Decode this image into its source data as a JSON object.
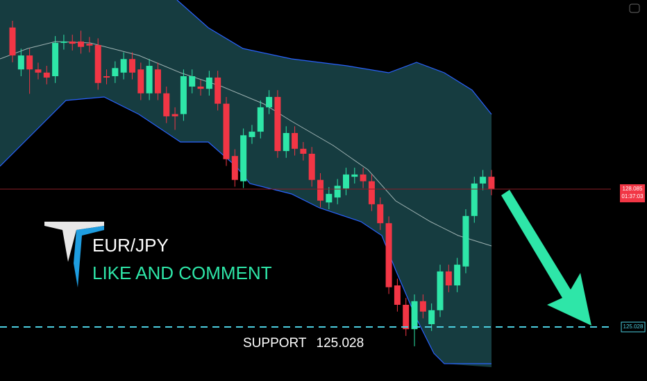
{
  "chart_data": {
    "type": "candlestick",
    "title": "EUR/JPY",
    "subtitle": "LIKE AND COMMENT",
    "support_label": "SUPPORT",
    "support": 125.028,
    "last_price": 128.085,
    "countdown": "01:37:03",
    "ylim": [
      123.83,
      132.28
    ],
    "up_color": "#2ee6a8",
    "down_color": "#f23645",
    "candles": [
      [
        131.67,
        131.82,
        130.9,
        131.05
      ],
      [
        130.74,
        131.2,
        130.59,
        131.05
      ],
      [
        131.05,
        131.2,
        130.2,
        130.74
      ],
      [
        130.74,
        130.89,
        130.52,
        130.67
      ],
      [
        130.67,
        130.82,
        130.41,
        130.56
      ],
      [
        130.59,
        131.48,
        130.44,
        131.33
      ],
      [
        131.33,
        131.51,
        131.18,
        131.36
      ],
      [
        131.36,
        131.51,
        131.16,
        131.31
      ],
      [
        131.36,
        131.6,
        131.09,
        131.24
      ],
      [
        131.31,
        131.46,
        131.12,
        131.27
      ],
      [
        131.28,
        131.43,
        130.29,
        130.44
      ],
      [
        130.59,
        130.74,
        130.41,
        130.56
      ],
      [
        130.59,
        130.92,
        130.44,
        130.77
      ],
      [
        130.67,
        131.12,
        130.52,
        130.97
      ],
      [
        130.97,
        131.12,
        130.52,
        130.67
      ],
      [
        130.74,
        130.89,
        130.06,
        130.21
      ],
      [
        130.21,
        130.97,
        130.06,
        130.82
      ],
      [
        130.74,
        130.89,
        130.06,
        130.21
      ],
      [
        130.21,
        130.36,
        129.55,
        129.7
      ],
      [
        129.75,
        129.9,
        129.4,
        129.7
      ],
      [
        129.75,
        130.74,
        129.6,
        130.59
      ],
      [
        130.36,
        130.74,
        130.21,
        130.59
      ],
      [
        130.36,
        130.51,
        130.16,
        130.31
      ],
      [
        130.31,
        130.71,
        130.16,
        130.56
      ],
      [
        130.56,
        130.71,
        129.83,
        129.98
      ],
      [
        129.98,
        130.13,
        128.6,
        128.75
      ],
      [
        128.82,
        128.97,
        128.14,
        128.29
      ],
      [
        128.26,
        129.43,
        128.11,
        129.28
      ],
      [
        129.24,
        129.51,
        129.09,
        129.36
      ],
      [
        129.36,
        130.05,
        129.21,
        129.9
      ],
      [
        129.9,
        130.28,
        129.75,
        130.13
      ],
      [
        130.13,
        130.28,
        128.78,
        128.93
      ],
      [
        128.93,
        129.48,
        128.78,
        129.33
      ],
      [
        129.33,
        129.48,
        128.83,
        128.98
      ],
      [
        128.98,
        129.13,
        128.72,
        128.87
      ],
      [
        128.87,
        129.02,
        128.14,
        128.29
      ],
      [
        128.29,
        128.44,
        127.68,
        127.83
      ],
      [
        127.79,
        128.13,
        127.64,
        127.98
      ],
      [
        127.9,
        128.31,
        127.75,
        128.16
      ],
      [
        128.1,
        128.56,
        127.95,
        128.41
      ],
      [
        128.36,
        128.56,
        128.21,
        128.41
      ],
      [
        128.41,
        128.56,
        128.11,
        128.26
      ],
      [
        128.26,
        128.41,
        127.6,
        127.75
      ],
      [
        127.75,
        127.9,
        127.18,
        127.33
      ],
      [
        127.33,
        127.48,
        125.76,
        125.91
      ],
      [
        125.95,
        126.1,
        125.37,
        125.52
      ],
      [
        125.52,
        125.67,
        124.83,
        124.98
      ],
      [
        124.98,
        125.75,
        124.6,
        125.6
      ],
      [
        125.6,
        125.75,
        125.22,
        125.37
      ],
      [
        125.09,
        125.55,
        124.94,
        125.4
      ],
      [
        125.4,
        126.41,
        125.25,
        126.26
      ],
      [
        126.26,
        126.41,
        125.8,
        125.95
      ],
      [
        125.95,
        126.56,
        125.8,
        126.41
      ],
      [
        126.37,
        127.64,
        126.22,
        127.49
      ],
      [
        127.49,
        128.36,
        127.34,
        128.21
      ],
      [
        128.21,
        128.51,
        128.06,
        128.36
      ],
      [
        128.36,
        128.51,
        127.95,
        128.085
      ]
    ]
  }
}
